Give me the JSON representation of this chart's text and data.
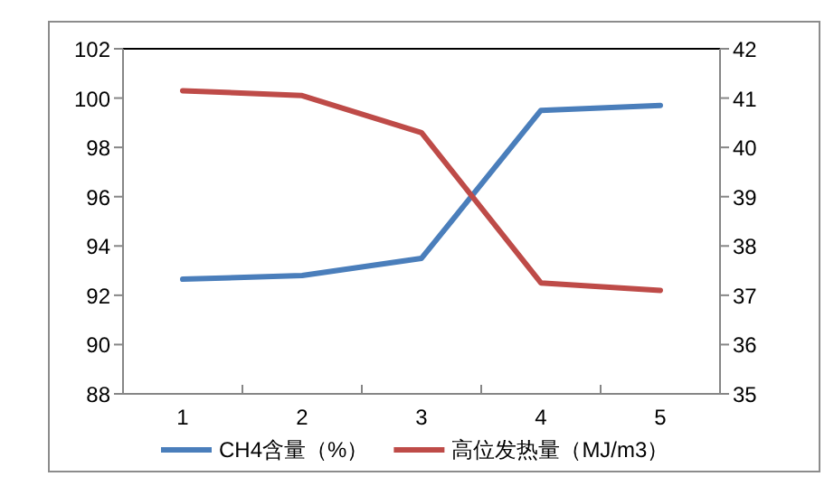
{
  "chart_data": {
    "type": "line",
    "categories": [
      "1",
      "2",
      "3",
      "4",
      "5"
    ],
    "series": [
      {
        "name": "CH4含量（%）",
        "color": "#4a7ebb",
        "values": [
          92.65,
          92.8,
          93.5,
          99.5,
          99.7
        ]
      },
      {
        "name": "高位发热量（MJ/m3）",
        "color": "#be4b48",
        "axis": "y2",
        "values": [
          41.15,
          41.05,
          40.3,
          37.25,
          37.1
        ]
      }
    ],
    "ylim": [
      88,
      102
    ],
    "yticks": [
      88,
      90,
      92,
      94,
      96,
      98,
      100,
      102
    ],
    "y2lim": [
      35,
      42
    ],
    "y2ticks": [
      35,
      36,
      37,
      38,
      39,
      40,
      41,
      42
    ],
    "legend": "bottom",
    "grid": false,
    "marker": "none",
    "line_style": "solid"
  }
}
